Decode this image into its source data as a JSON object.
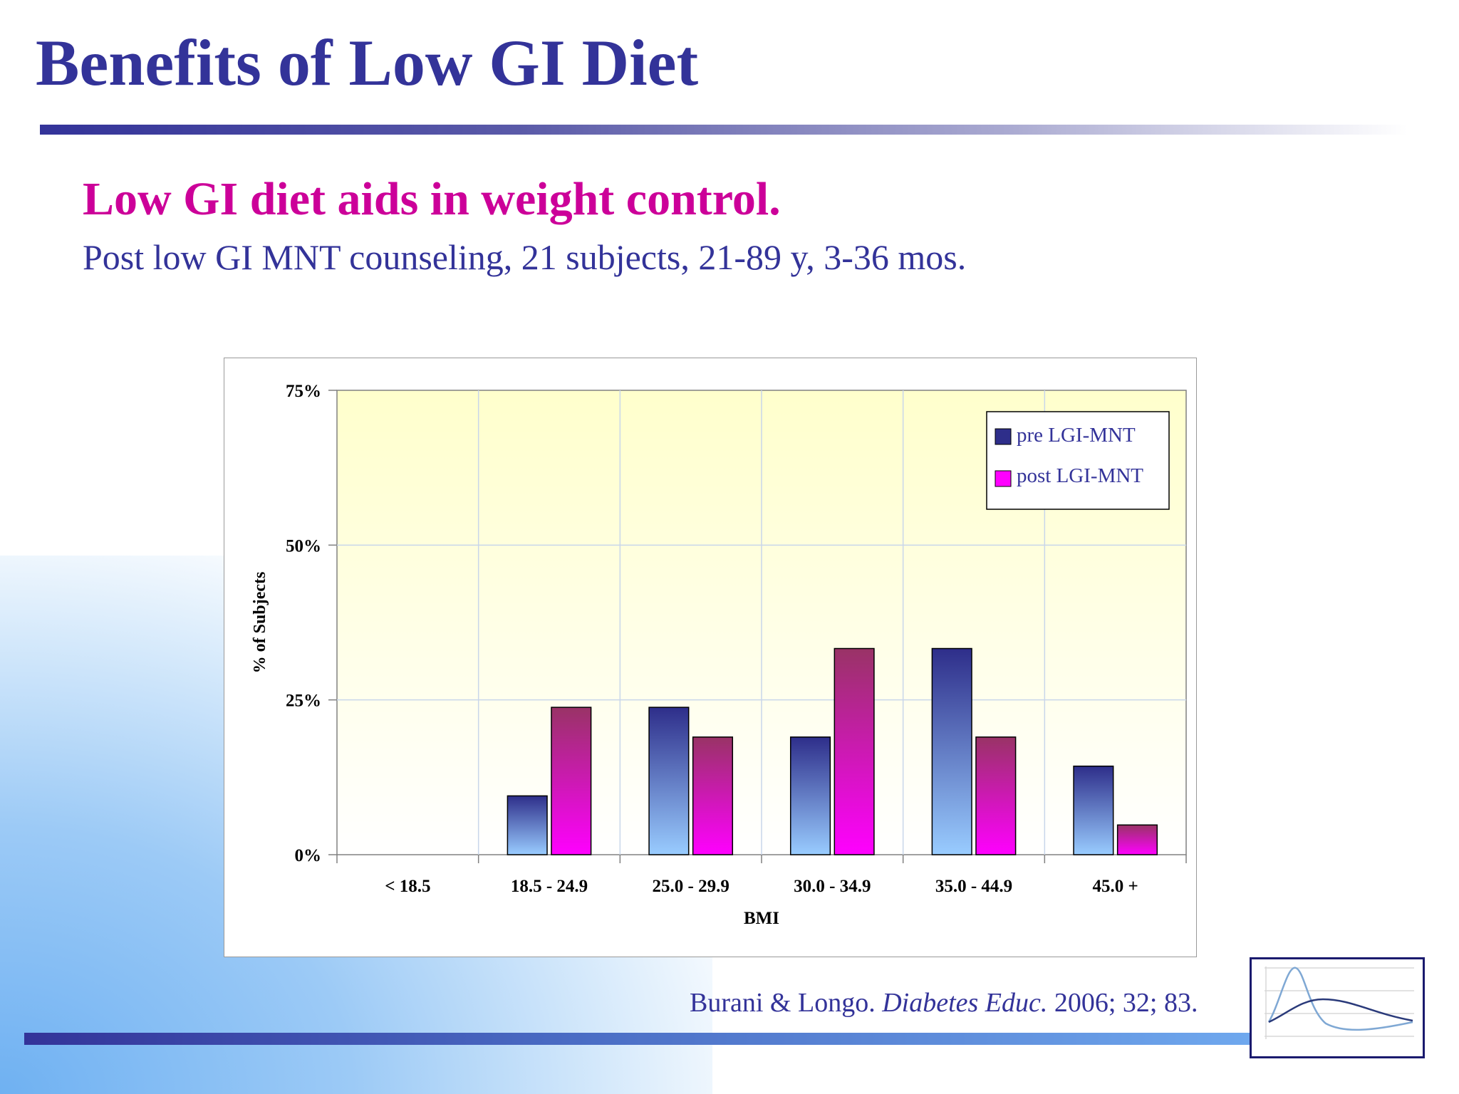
{
  "slide": {
    "title": "Benefits of Low GI Diet",
    "subtitle": "Low GI diet aids in weight control.",
    "subline": "Post low GI MNT counseling, 21 subjects, 21-89 y, 3-36 mos.",
    "citation": {
      "authors": "Burani & Longo. ",
      "journal": "Diabetes Educ.",
      "details": " 2006; 32; 83."
    },
    "logo_icon": "gi-curve-graph-icon",
    "colors": {
      "title": "#333399",
      "subtitle": "#cc0099",
      "pre_series": "#2e2e8a",
      "post_series": "#ff00ff",
      "plot_background": "#ffffcc"
    }
  },
  "chart_data": {
    "type": "bar",
    "xlabel": "BMI",
    "ylabel": "% of Subjects",
    "ylim": [
      0,
      75
    ],
    "yticks": [
      0,
      25,
      50,
      75
    ],
    "ytick_labels": [
      "0%",
      "25%",
      "50%",
      "75%"
    ],
    "grid": true,
    "legend_position": "top-right",
    "categories": [
      "< 18.5",
      "18.5 - 24.9",
      "25.0 - 29.9",
      "30.0 - 34.9",
      "35.0 - 44.9",
      "45.0 +"
    ],
    "series": [
      {
        "name": "pre LGI-MNT",
        "values": [
          0,
          9.5,
          23.8,
          19.0,
          33.3,
          14.3
        ]
      },
      {
        "name": "post LGI-MNT",
        "values": [
          0,
          23.8,
          19.0,
          33.3,
          19.0,
          4.8
        ]
      }
    ]
  }
}
